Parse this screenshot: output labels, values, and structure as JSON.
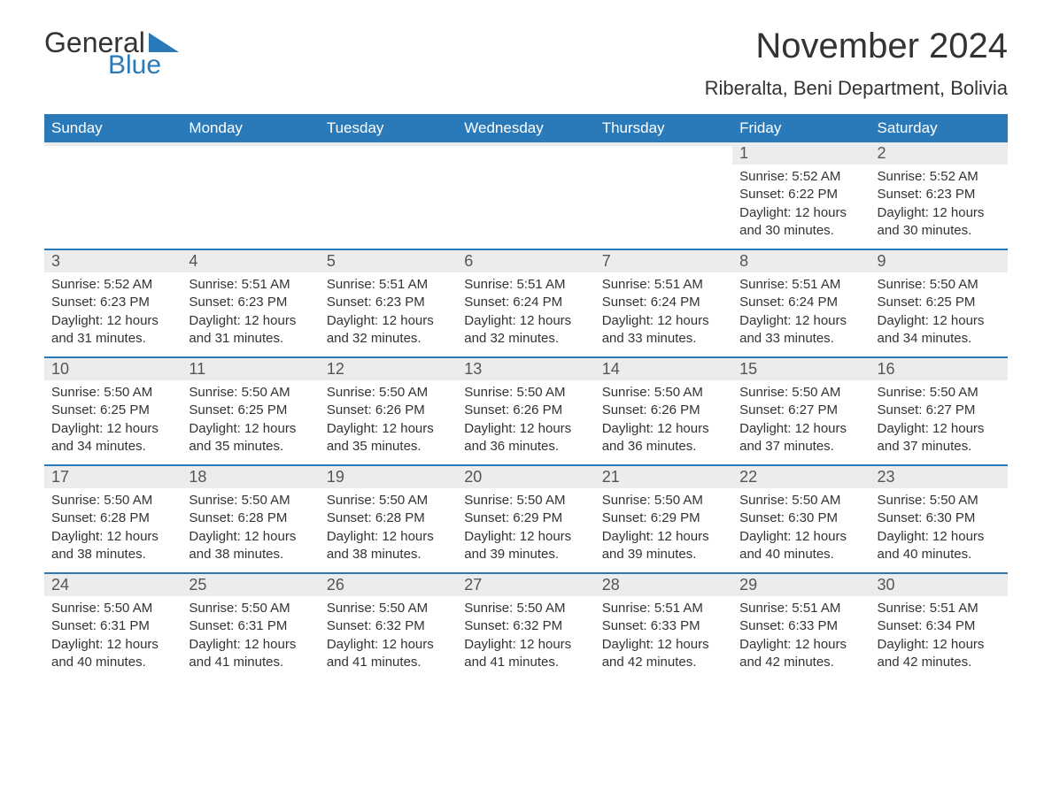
{
  "logo": {
    "text1": "General",
    "text2": "Blue"
  },
  "title": "November 2024",
  "location": "Riberalta, Beni Department, Bolivia",
  "colors": {
    "header_bg": "#2a7ab9",
    "divider": "#2a7ab9",
    "daynum_bg": "#ececec",
    "text": "#333333"
  },
  "day_headers": [
    "Sunday",
    "Monday",
    "Tuesday",
    "Wednesday",
    "Thursday",
    "Friday",
    "Saturday"
  ],
  "weeks": [
    [
      {
        "blank": true
      },
      {
        "blank": true
      },
      {
        "blank": true
      },
      {
        "blank": true
      },
      {
        "blank": true
      },
      {
        "n": "1",
        "sunrise": "5:52 AM",
        "sunset": "6:22 PM",
        "daylight": "12 hours and 30 minutes."
      },
      {
        "n": "2",
        "sunrise": "5:52 AM",
        "sunset": "6:23 PM",
        "daylight": "12 hours and 30 minutes."
      }
    ],
    [
      {
        "n": "3",
        "sunrise": "5:52 AM",
        "sunset": "6:23 PM",
        "daylight": "12 hours and 31 minutes."
      },
      {
        "n": "4",
        "sunrise": "5:51 AM",
        "sunset": "6:23 PM",
        "daylight": "12 hours and 31 minutes."
      },
      {
        "n": "5",
        "sunrise": "5:51 AM",
        "sunset": "6:23 PM",
        "daylight": "12 hours and 32 minutes."
      },
      {
        "n": "6",
        "sunrise": "5:51 AM",
        "sunset": "6:24 PM",
        "daylight": "12 hours and 32 minutes."
      },
      {
        "n": "7",
        "sunrise": "5:51 AM",
        "sunset": "6:24 PM",
        "daylight": "12 hours and 33 minutes."
      },
      {
        "n": "8",
        "sunrise": "5:51 AM",
        "sunset": "6:24 PM",
        "daylight": "12 hours and 33 minutes."
      },
      {
        "n": "9",
        "sunrise": "5:50 AM",
        "sunset": "6:25 PM",
        "daylight": "12 hours and 34 minutes."
      }
    ],
    [
      {
        "n": "10",
        "sunrise": "5:50 AM",
        "sunset": "6:25 PM",
        "daylight": "12 hours and 34 minutes."
      },
      {
        "n": "11",
        "sunrise": "5:50 AM",
        "sunset": "6:25 PM",
        "daylight": "12 hours and 35 minutes."
      },
      {
        "n": "12",
        "sunrise": "5:50 AM",
        "sunset": "6:26 PM",
        "daylight": "12 hours and 35 minutes."
      },
      {
        "n": "13",
        "sunrise": "5:50 AM",
        "sunset": "6:26 PM",
        "daylight": "12 hours and 36 minutes."
      },
      {
        "n": "14",
        "sunrise": "5:50 AM",
        "sunset": "6:26 PM",
        "daylight": "12 hours and 36 minutes."
      },
      {
        "n": "15",
        "sunrise": "5:50 AM",
        "sunset": "6:27 PM",
        "daylight": "12 hours and 37 minutes."
      },
      {
        "n": "16",
        "sunrise": "5:50 AM",
        "sunset": "6:27 PM",
        "daylight": "12 hours and 37 minutes."
      }
    ],
    [
      {
        "n": "17",
        "sunrise": "5:50 AM",
        "sunset": "6:28 PM",
        "daylight": "12 hours and 38 minutes."
      },
      {
        "n": "18",
        "sunrise": "5:50 AM",
        "sunset": "6:28 PM",
        "daylight": "12 hours and 38 minutes."
      },
      {
        "n": "19",
        "sunrise": "5:50 AM",
        "sunset": "6:28 PM",
        "daylight": "12 hours and 38 minutes."
      },
      {
        "n": "20",
        "sunrise": "5:50 AM",
        "sunset": "6:29 PM",
        "daylight": "12 hours and 39 minutes."
      },
      {
        "n": "21",
        "sunrise": "5:50 AM",
        "sunset": "6:29 PM",
        "daylight": "12 hours and 39 minutes."
      },
      {
        "n": "22",
        "sunrise": "5:50 AM",
        "sunset": "6:30 PM",
        "daylight": "12 hours and 40 minutes."
      },
      {
        "n": "23",
        "sunrise": "5:50 AM",
        "sunset": "6:30 PM",
        "daylight": "12 hours and 40 minutes."
      }
    ],
    [
      {
        "n": "24",
        "sunrise": "5:50 AM",
        "sunset": "6:31 PM",
        "daylight": "12 hours and 40 minutes."
      },
      {
        "n": "25",
        "sunrise": "5:50 AM",
        "sunset": "6:31 PM",
        "daylight": "12 hours and 41 minutes."
      },
      {
        "n": "26",
        "sunrise": "5:50 AM",
        "sunset": "6:32 PM",
        "daylight": "12 hours and 41 minutes."
      },
      {
        "n": "27",
        "sunrise": "5:50 AM",
        "sunset": "6:32 PM",
        "daylight": "12 hours and 41 minutes."
      },
      {
        "n": "28",
        "sunrise": "5:51 AM",
        "sunset": "6:33 PM",
        "daylight": "12 hours and 42 minutes."
      },
      {
        "n": "29",
        "sunrise": "5:51 AM",
        "sunset": "6:33 PM",
        "daylight": "12 hours and 42 minutes."
      },
      {
        "n": "30",
        "sunrise": "5:51 AM",
        "sunset": "6:34 PM",
        "daylight": "12 hours and 42 minutes."
      }
    ]
  ],
  "labels": {
    "sunrise": "Sunrise:",
    "sunset": "Sunset:",
    "daylight": "Daylight:"
  }
}
